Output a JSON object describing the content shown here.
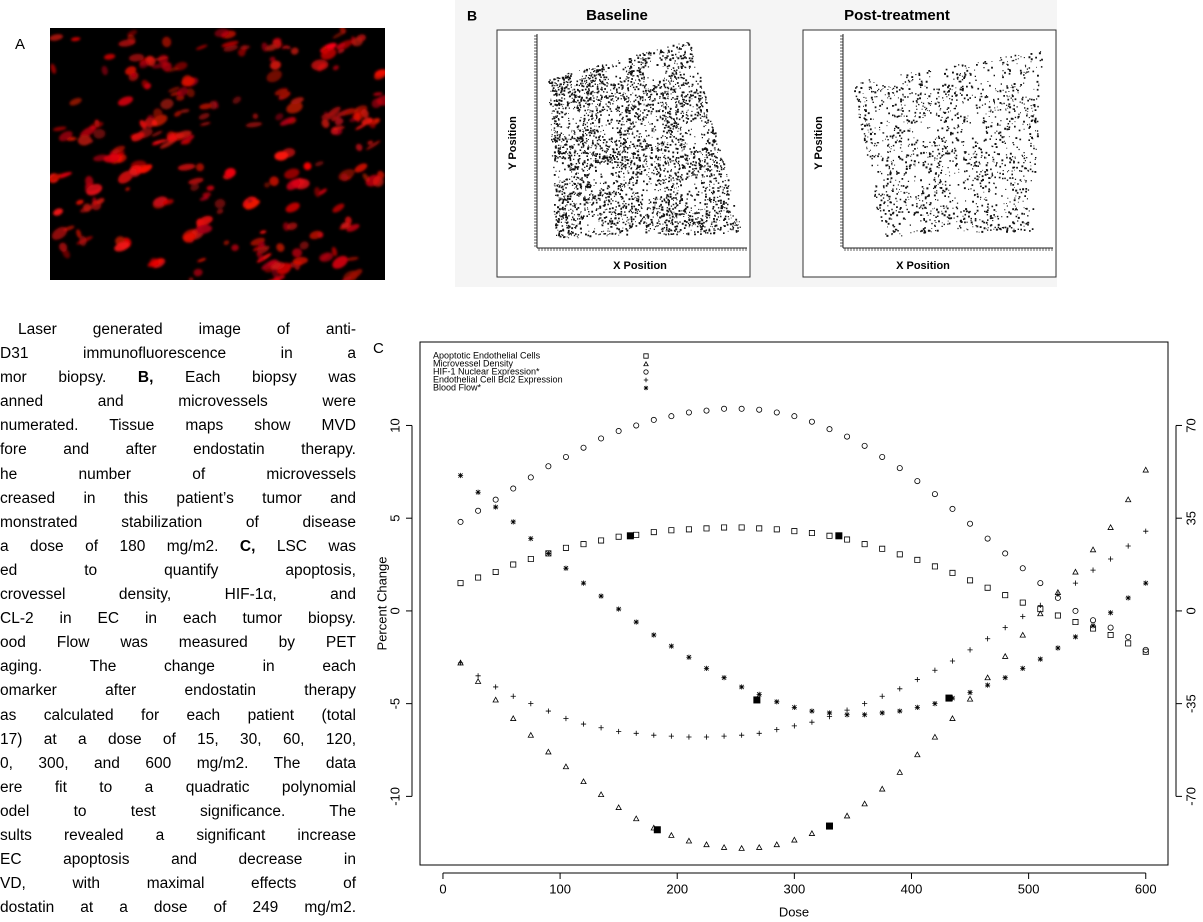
{
  "panel_labels": [
    "A",
    "B",
    "C"
  ],
  "panel_b": {
    "titles": [
      "Baseline",
      "Post-treatment"
    ],
    "x_label": "X Position",
    "y_label": "Y Position"
  },
  "caption": {
    "lines": [
      [
        "Laser generated image of anti-"
      ],
      [
        "D31 immunofluorescence in a"
      ],
      [
        "mor biopsy. ",
        "B,",
        " Each biopsy was"
      ],
      [
        "anned and microvessels were"
      ],
      [
        "numerated. Tissue maps show MVD"
      ],
      [
        "fore and after endostatin therapy."
      ],
      [
        "he number of microvessels"
      ],
      [
        "creased in this patient’s tumor and"
      ],
      [
        "monstrated stabilization of disease"
      ],
      [
        "a dose of 180 mg/m2. ",
        "C,",
        " LSC was"
      ],
      [
        "ed to quantify apoptosis,"
      ],
      [
        "crovessel density, HIF-1α, and"
      ],
      [
        "CL-2 in EC in each tumor biopsy."
      ],
      [
        "ood Flow was measured by PET"
      ],
      [
        "aging. The change in each"
      ],
      [
        "omarker after endostatin therapy"
      ],
      [
        "as calculated for each patient (total"
      ],
      [
        "17) at a dose of 15, 30, 60, 120,"
      ],
      [
        "0, 300, and 600 mg/m2. The data"
      ],
      [
        "ere fit to a quadratic polynomial"
      ],
      [
        "odel to test significance. The"
      ],
      [
        "sults revealed a significant increase"
      ],
      [
        "EC apoptosis and decrease in"
      ],
      [
        "VD, with maximal effects of"
      ],
      [
        "dostatin at a dose of 249 mg/m2."
      ]
    ]
  },
  "chart_data": {
    "type": "scatter",
    "x_label": "Dose",
    "y_label": "Percent Change",
    "xlim": [
      -19.6,
      619
    ],
    "ylim": [
      -13.7,
      14.5
    ],
    "y2lim": [
      -95.9,
      101.5
    ],
    "xticks": [
      0,
      100,
      200,
      300,
      400,
      500,
      600
    ],
    "yticks": [
      -10,
      -5,
      0,
      5,
      10
    ],
    "y2ticks": [
      -70,
      -35,
      0,
      35,
      70
    ],
    "x": [
      15,
      30,
      45,
      60,
      75,
      90,
      105,
      120,
      135,
      150,
      165,
      180,
      195,
      210,
      225,
      240,
      255,
      270,
      285,
      300,
      315,
      330,
      345,
      360,
      375,
      390,
      405,
      420,
      435,
      450,
      465,
      480,
      495,
      510,
      525,
      540,
      555,
      570,
      585,
      600
    ],
    "series": [
      {
        "name": "Apoptotic Endothelial Cells",
        "color": "#000000",
        "marker": "square",
        "values": [
          1.5,
          1.8,
          2.1,
          2.5,
          2.8,
          3.1,
          3.4,
          3.6,
          3.8,
          4.0,
          4.1,
          4.25,
          4.35,
          4.4,
          4.45,
          4.5,
          4.5,
          4.45,
          4.4,
          4.3,
          4.2,
          4.05,
          3.85,
          3.6,
          3.35,
          3.05,
          2.75,
          2.4,
          2.05,
          1.65,
          1.25,
          0.85,
          0.45,
          0.1,
          -0.25,
          -0.6,
          -0.95,
          -1.3,
          -1.75,
          -2.2
        ]
      },
      {
        "name": "Microvessel Density",
        "color": "#000000",
        "marker": "triangle",
        "values": [
          -2.8,
          -3.8,
          -4.8,
          -5.8,
          -6.7,
          -7.6,
          -8.4,
          -9.2,
          -9.9,
          -10.6,
          -11.2,
          -11.7,
          -12.1,
          -12.4,
          -12.6,
          -12.75,
          -12.8,
          -12.75,
          -12.6,
          -12.35,
          -12.0,
          -11.6,
          -11.05,
          -10.4,
          -9.6,
          -8.7,
          -7.75,
          -6.8,
          -5.8,
          -4.75,
          -3.6,
          -2.45,
          -1.3,
          -0.15,
          1.0,
          2.1,
          3.3,
          4.5,
          6.0,
          7.6
        ]
      },
      {
        "name": "HIF-1 Nuclear Expression*",
        "color": "#000000",
        "marker": "circle",
        "values": [
          4.8,
          5.4,
          6.0,
          6.6,
          7.2,
          7.8,
          8.3,
          8.8,
          9.3,
          9.7,
          10.0,
          10.3,
          10.5,
          10.7,
          10.8,
          10.9,
          10.9,
          10.85,
          10.7,
          10.5,
          10.2,
          9.8,
          9.4,
          8.9,
          8.3,
          7.7,
          7.0,
          6.3,
          5.5,
          4.7,
          3.9,
          3.1,
          2.3,
          1.5,
          0.7,
          0.0,
          -0.5,
          -0.9,
          -1.4,
          -2.1
        ]
      },
      {
        "name": "Endothelial Cell Bcl2 Expression",
        "color": "#000000",
        "marker": "plus",
        "values": [
          -2.8,
          -3.5,
          -4.1,
          -4.6,
          -5.0,
          -5.4,
          -5.8,
          -6.1,
          -6.3,
          -6.5,
          -6.6,
          -6.7,
          -6.75,
          -6.8,
          -6.8,
          -6.75,
          -6.7,
          -6.6,
          -6.4,
          -6.2,
          -6.0,
          -5.7,
          -5.35,
          -5.0,
          -4.6,
          -4.2,
          -3.7,
          -3.2,
          -2.7,
          -2.1,
          -1.5,
          -0.9,
          -0.3,
          0.3,
          0.9,
          1.5,
          2.2,
          2.8,
          3.5,
          4.3
        ]
      },
      {
        "name": "Blood Flow*",
        "color": "#000000",
        "marker": "asterisk",
        "values": [
          7.3,
          6.4,
          5.6,
          4.8,
          3.9,
          3.1,
          2.3,
          1.5,
          0.8,
          0.1,
          -0.6,
          -1.3,
          -1.9,
          -2.5,
          -3.1,
          -3.6,
          -4.1,
          -4.5,
          -4.9,
          -5.2,
          -5.4,
          -5.5,
          -5.6,
          -5.6,
          -5.5,
          -5.4,
          -5.2,
          -5.0,
          -4.7,
          -4.4,
          -4.0,
          -3.6,
          -3.1,
          -2.6,
          -2.0,
          -1.4,
          -0.8,
          -0.1,
          0.7,
          1.5
        ]
      }
    ],
    "highlight": {
      "color": "#000000",
      "x": [
        160,
        183,
        268,
        330,
        338,
        432
      ],
      "values": [
        4.05,
        -11.8,
        -4.8,
        -11.6,
        4.05,
        -4.7
      ]
    }
  }
}
